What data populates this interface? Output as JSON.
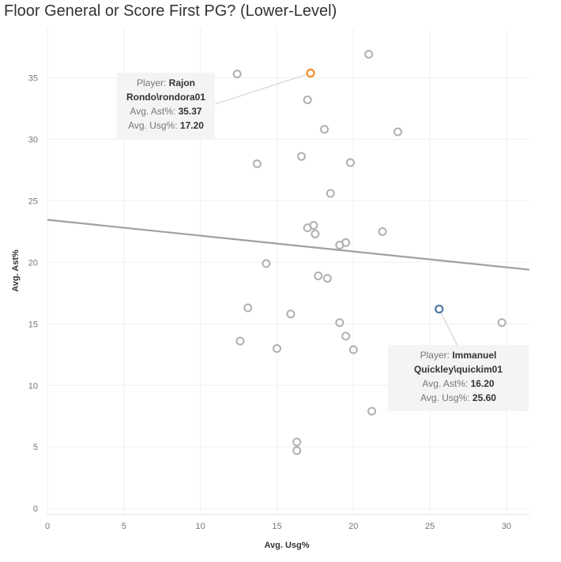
{
  "chart_data": {
    "type": "scatter",
    "title": "Floor General or Score First PG? (Lower-Level)",
    "xlabel": "Avg. Usg%",
    "ylabel": "Avg. Ast%",
    "xlim": [
      0,
      31.5
    ],
    "ylim": [
      -0.5,
      39
    ],
    "xticks": [
      0,
      5,
      10,
      15,
      20,
      25,
      30
    ],
    "yticks": [
      0,
      5,
      10,
      15,
      20,
      25,
      30,
      35
    ],
    "grid": true,
    "trend_line": {
      "x1": 0,
      "y1": 23.45,
      "x2": 31.5,
      "y2": 19.4,
      "color": "#a0a0a0"
    },
    "point_color": "#b0b0b0",
    "points": [
      {
        "x": 12.4,
        "y": 35.3
      },
      {
        "x": 21.0,
        "y": 36.9
      },
      {
        "x": 17.0,
        "y": 33.2
      },
      {
        "x": 18.1,
        "y": 30.8
      },
      {
        "x": 22.9,
        "y": 30.6
      },
      {
        "x": 16.6,
        "y": 28.6
      },
      {
        "x": 13.7,
        "y": 28.0
      },
      {
        "x": 19.8,
        "y": 28.1
      },
      {
        "x": 18.5,
        "y": 25.6
      },
      {
        "x": 17.4,
        "y": 23.0
      },
      {
        "x": 17.0,
        "y": 22.8
      },
      {
        "x": 17.5,
        "y": 22.3
      },
      {
        "x": 21.9,
        "y": 22.5
      },
      {
        "x": 19.1,
        "y": 21.4
      },
      {
        "x": 19.5,
        "y": 21.6
      },
      {
        "x": 14.3,
        "y": 19.9
      },
      {
        "x": 17.7,
        "y": 18.9
      },
      {
        "x": 18.3,
        "y": 18.7
      },
      {
        "x": 13.1,
        "y": 16.3
      },
      {
        "x": 15.9,
        "y": 15.8
      },
      {
        "x": 19.1,
        "y": 15.1
      },
      {
        "x": 29.7,
        "y": 15.1
      },
      {
        "x": 12.6,
        "y": 13.6
      },
      {
        "x": 19.5,
        "y": 14.0
      },
      {
        "x": 15.0,
        "y": 13.0
      },
      {
        "x": 20.0,
        "y": 12.9
      },
      {
        "x": 21.2,
        "y": 7.9
      },
      {
        "x": 16.3,
        "y": 5.4
      },
      {
        "x": 16.3,
        "y": 4.7
      }
    ],
    "highlighted": [
      {
        "x": 17.2,
        "y": 35.37,
        "color": "#f28e2b",
        "tooltip": {
          "player_label": "Player:",
          "player_name": "Rajon Rondo\\rondora01",
          "ast_label": "Avg. Ast%:",
          "ast_value": "35.37",
          "usg_label": "Avg. Usg%:",
          "usg_value": "17.20"
        }
      },
      {
        "x": 25.6,
        "y": 16.2,
        "color": "#4e79a7",
        "tooltip": {
          "player_label": "Player:",
          "player_name": "Immanuel Quickley\\quickim01",
          "ast_label": "Avg. Ast%:",
          "ast_value": "16.20",
          "usg_label": "Avg. Usg%:",
          "usg_value": "25.60"
        }
      }
    ]
  }
}
